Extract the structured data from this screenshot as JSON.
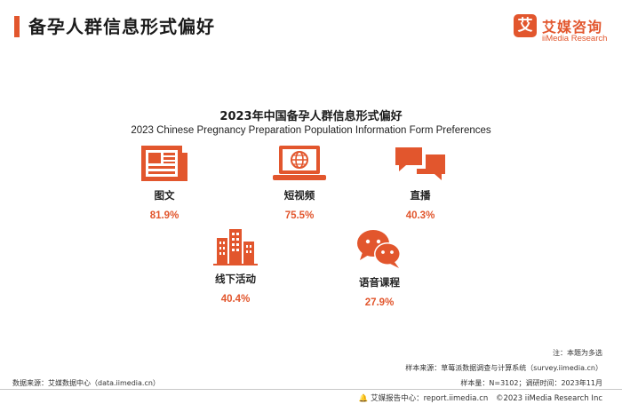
{
  "header": {
    "page_title": "备孕人群信息形式偏好",
    "logo_mark": "艾",
    "logo_cn": "艾媒咨询",
    "logo_en": "iiMedia Research"
  },
  "chart_data": {
    "type": "icon-stat",
    "title": "2023年中国备孕人群信息形式偏好",
    "subtitle": "2023 Chinese Pregnancy Preparation Population Information Form Preferences",
    "unit": "%",
    "items": [
      {
        "label": "图文",
        "value": 81.9,
        "display": "81.9%",
        "icon": "newspaper-icon"
      },
      {
        "label": "短视频",
        "value": 75.5,
        "display": "75.5%",
        "icon": "laptop-globe-icon"
      },
      {
        "label": "直播",
        "value": 40.3,
        "display": "40.3%",
        "icon": "chat-bubbles-icon"
      },
      {
        "label": "线下活动",
        "value": 40.4,
        "display": "40.4%",
        "icon": "buildings-icon"
      },
      {
        "label": "语音课程",
        "value": 27.9,
        "display": "27.9%",
        "icon": "voice-chat-icon"
      }
    ]
  },
  "notes": {
    "note": "注：本题为多选",
    "sample_source": "样本来源：草莓派数据调查与计算系统（survey.iimedia.cn）",
    "sample_size": "样本量：N=3102；调研时间：2023年11月",
    "data_source": "数据来源：艾媒数据中心（data.iimedia.cn）"
  },
  "footer": {
    "report_center": "艾媒报告中心：report.iimedia.cn",
    "copyright": "©2023 iiMedia Research Inc"
  },
  "colors": {
    "accent": "#e2562d",
    "text": "#222222"
  }
}
